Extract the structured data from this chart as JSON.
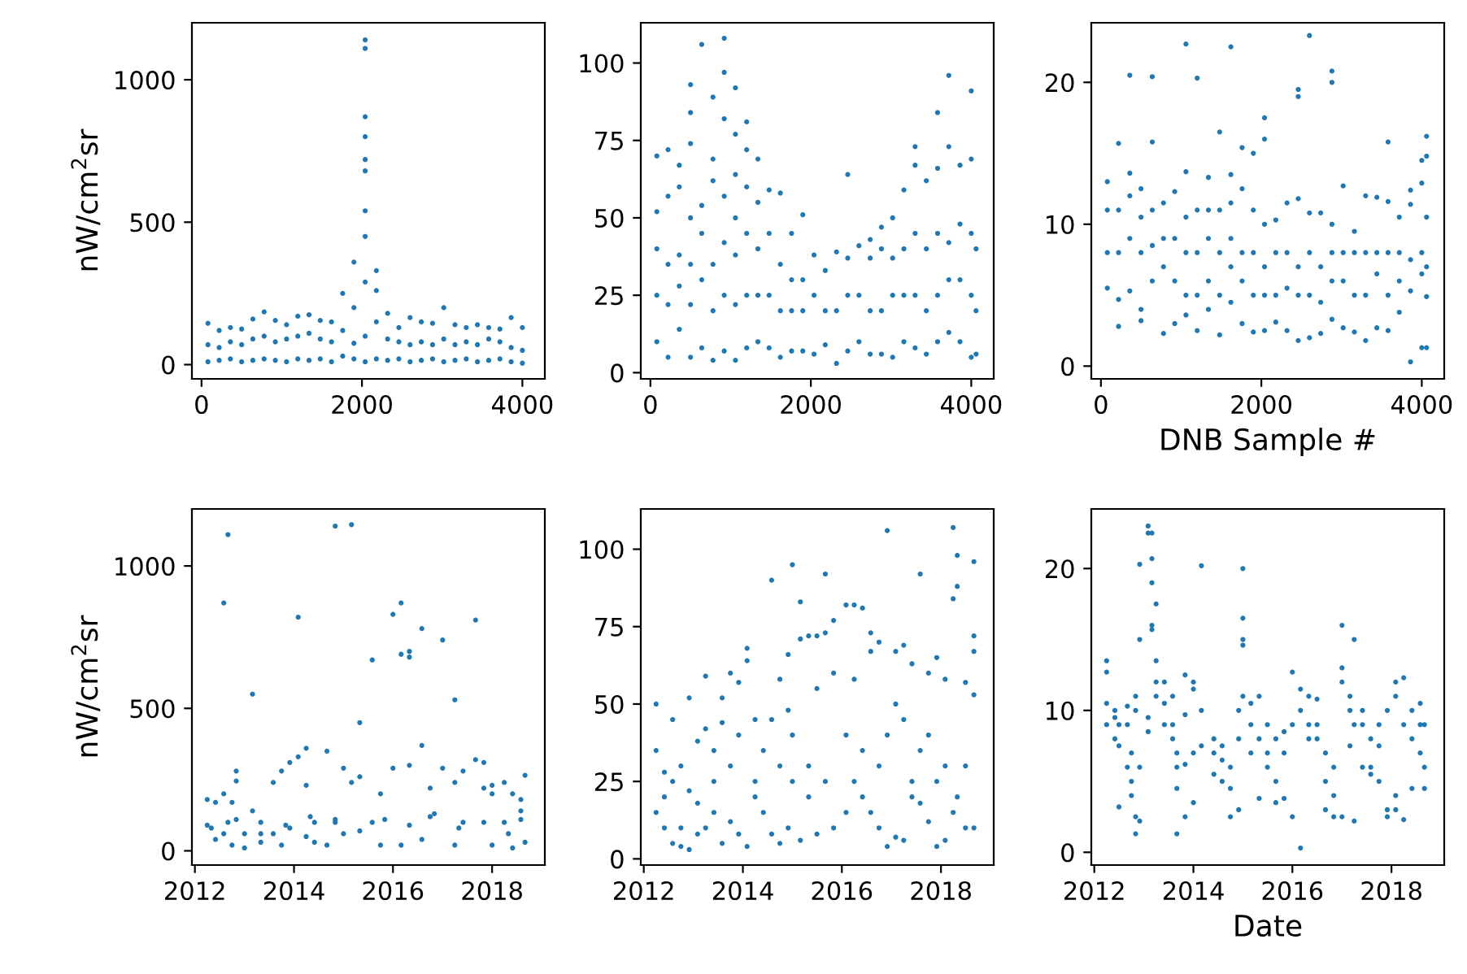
{
  "chart_data": [
    {
      "type": "scatter",
      "ylabel": "nW/cm$^{2}$sr",
      "color": "#1f77b4",
      "marker": "circle",
      "xlim": [
        -120,
        4280
      ],
      "ylim": [
        -50,
        1200
      ],
      "xticks": [
        0,
        2000,
        4000
      ],
      "yticks": [
        0,
        500,
        1000
      ],
      "x": [
        80,
        80,
        80,
        220,
        220,
        220,
        360,
        360,
        360,
        500,
        500,
        500,
        640,
        640,
        640,
        780,
        780,
        780,
        920,
        920,
        920,
        1060,
        1060,
        1060,
        1200,
        1200,
        1200,
        1340,
        1340,
        1340,
        1480,
        1480,
        1480,
        1620,
        1620,
        1620,
        1760,
        1760,
        1760,
        1900,
        1900,
        1900,
        1900,
        2040,
        2040,
        2040,
        2040,
        2040,
        2040,
        2040,
        2040,
        2040,
        2040,
        2040,
        2180,
        2180,
        2180,
        2180,
        2320,
        2320,
        2320,
        2460,
        2460,
        2460,
        2600,
        2600,
        2600,
        2740,
        2740,
        2740,
        2880,
        2880,
        2880,
        3020,
        3020,
        3020,
        3160,
        3160,
        3160,
        3300,
        3300,
        3300,
        3440,
        3440,
        3440,
        3580,
        3580,
        3580,
        3720,
        3720,
        3720,
        3860,
        3860,
        3860,
        4000,
        4000,
        4000
      ],
      "values": [
        10,
        70,
        145,
        15,
        60,
        120,
        20,
        80,
        130,
        10,
        70,
        125,
        15,
        90,
        160,
        20,
        100,
        185,
        15,
        80,
        155,
        10,
        90,
        140,
        20,
        100,
        170,
        15,
        110,
        175,
        20,
        90,
        155,
        10,
        80,
        150,
        30,
        120,
        250,
        20,
        200,
        360,
        75,
        10,
        100,
        290,
        450,
        540,
        680,
        720,
        800,
        870,
        1110,
        1140,
        20,
        150,
        260,
        330,
        15,
        90,
        180,
        20,
        80,
        130,
        10,
        70,
        165,
        15,
        80,
        150,
        20,
        70,
        145,
        10,
        90,
        200,
        15,
        70,
        140,
        20,
        80,
        130,
        10,
        70,
        140,
        15,
        90,
        130,
        20,
        80,
        125,
        10,
        60,
        165,
        5,
        50,
        130
      ]
    },
    {
      "type": "scatter",
      "color": "#1f77b4",
      "marker": "circle",
      "xlim": [
        -120,
        4280
      ],
      "ylim": [
        -2,
        113
      ],
      "xticks": [
        0,
        2000,
        4000
      ],
      "yticks": [
        0,
        25,
        50,
        75,
        100
      ],
      "x": [
        80,
        80,
        80,
        80,
        80,
        220,
        220,
        220,
        220,
        220,
        360,
        360,
        360,
        360,
        360,
        500,
        500,
        500,
        500,
        500,
        500,
        500,
        640,
        640,
        640,
        640,
        640,
        780,
        780,
        780,
        780,
        780,
        780,
        920,
        920,
        920,
        920,
        920,
        920,
        920,
        1060,
        1060,
        1060,
        1060,
        1060,
        1060,
        1060,
        1200,
        1200,
        1200,
        1200,
        1200,
        1200,
        1340,
        1340,
        1340,
        1340,
        1340,
        1480,
        1480,
        1480,
        1480,
        1620,
        1620,
        1620,
        1620,
        1760,
        1760,
        1760,
        1760,
        1900,
        1900,
        1900,
        1900,
        2040,
        2040,
        2040,
        2180,
        2180,
        2180,
        2320,
        2320,
        2320,
        2460,
        2460,
        2460,
        2460,
        2600,
        2600,
        2600,
        2740,
        2740,
        2740,
        2740,
        2880,
        2880,
        2880,
        2880,
        3020,
        3020,
        3020,
        3020,
        3160,
        3160,
        3160,
        3160,
        3300,
        3300,
        3300,
        3300,
        3300,
        3440,
        3440,
        3440,
        3440,
        3580,
        3580,
        3580,
        3580,
        3580,
        3720,
        3720,
        3720,
        3720,
        3720,
        3860,
        3860,
        3860,
        3860,
        4000,
        4000,
        4000,
        4000,
        4000,
        4060,
        4060,
        4060
      ],
      "values": [
        10,
        25,
        40,
        52,
        70,
        5,
        22,
        35,
        57,
        72,
        14,
        28,
        38,
        60,
        67,
        5,
        22,
        35,
        50,
        74,
        84,
        93,
        8,
        30,
        45,
        54,
        106,
        4,
        20,
        35,
        62,
        69,
        89,
        7,
        25,
        42,
        57,
        82,
        97,
        108,
        4,
        22,
        38,
        50,
        64,
        77,
        92,
        8,
        25,
        45,
        60,
        72,
        81,
        10,
        25,
        40,
        55,
        69,
        8,
        25,
        45,
        59,
        5,
        20,
        35,
        58,
        7,
        20,
        30,
        45,
        7,
        20,
        30,
        51,
        6,
        25,
        38,
        9,
        20,
        33,
        3,
        20,
        39,
        7,
        25,
        37,
        64,
        10,
        25,
        41,
        6,
        20,
        37,
        43,
        6,
        20,
        40,
        47,
        5,
        25,
        37,
        50,
        10,
        25,
        40,
        59,
        8,
        25,
        45,
        67,
        73,
        6,
        20,
        40,
        62,
        10,
        25,
        45,
        66,
        84,
        13,
        30,
        42,
        73,
        96,
        10,
        30,
        48,
        67,
        5,
        25,
        45,
        69,
        91,
        6,
        20,
        40
      ]
    },
    {
      "type": "scatter",
      "xlabel": "DNB Sample #",
      "color": "#1f77b4",
      "marker": "circle",
      "xlim": [
        -120,
        4280
      ],
      "ylim": [
        -0.9,
        24.2
      ],
      "xticks": [
        0,
        2000,
        4000
      ],
      "yticks": [
        0,
        10,
        20
      ],
      "x": [
        80,
        80,
        80,
        80,
        220,
        220,
        220,
        220,
        220,
        360,
        360,
        360,
        360,
        360,
        500,
        500,
        500,
        500,
        500,
        640,
        640,
        640,
        640,
        640,
        780,
        780,
        780,
        780,
        920,
        920,
        920,
        920,
        1060,
        1060,
        1060,
        1060,
        1060,
        1060,
        1200,
        1200,
        1200,
        1200,
        1200,
        1340,
        1340,
        1340,
        1340,
        1340,
        1480,
        1480,
        1480,
        1480,
        1480,
        1620,
        1620,
        1620,
        1620,
        1620,
        1620,
        1760,
        1760,
        1760,
        1760,
        1760,
        1900,
        1900,
        1900,
        1900,
        1900,
        2040,
        2040,
        2040,
        2040,
        2040,
        2040,
        2180,
        2180,
        2180,
        2180,
        2320,
        2320,
        2320,
        2320,
        2460,
        2460,
        2460,
        2460,
        2460,
        2460,
        2600,
        2600,
        2600,
        2600,
        2600,
        2740,
        2740,
        2740,
        2740,
        2880,
        2880,
        2880,
        2880,
        2880,
        2880,
        3020,
        3020,
        3020,
        3020,
        3160,
        3160,
        3160,
        3160,
        3300,
        3300,
        3300,
        3300,
        3440,
        3440,
        3440,
        3440,
        3580,
        3580,
        3580,
        3580,
        3580,
        3720,
        3720,
        3720,
        3720,
        3860,
        3860,
        3860,
        3860,
        3860,
        4000,
        4000,
        4000,
        4000,
        4000,
        4060,
        4060,
        4060,
        4060,
        4060,
        4060
      ],
      "values": [
        5.5,
        8,
        11,
        13,
        2.8,
        4.7,
        8,
        11,
        15.7,
        5.3,
        9,
        12,
        13.6,
        20.5,
        3.2,
        4,
        8,
        10.5,
        12.5,
        6,
        8.5,
        11,
        15.8,
        20.4,
        2.3,
        7,
        9,
        11.5,
        3,
        6,
        9,
        12.3,
        3.6,
        5,
        8,
        10.5,
        13.7,
        22.7,
        2.5,
        5,
        8,
        11,
        20.3,
        4,
        6,
        9,
        11,
        13.3,
        2.2,
        5,
        8,
        11,
        16.5,
        4.5,
        7,
        9,
        11.5,
        13.5,
        22.5,
        3,
        6,
        8,
        12.5,
        15.4,
        2.4,
        5,
        8,
        11,
        15,
        2.5,
        5,
        7,
        10,
        16,
        17.5,
        3.1,
        5,
        8,
        10.3,
        2.5,
        5.5,
        8,
        11.5,
        1.8,
        5,
        7,
        11.8,
        19,
        19.5,
        2,
        5,
        8,
        10.8,
        23.3,
        2.3,
        4.5,
        7,
        10.8,
        3.3,
        6,
        8,
        10,
        20,
        20.8,
        2.7,
        6,
        8,
        12.7,
        2.4,
        5,
        8,
        9.5,
        1.8,
        5,
        8,
        12,
        2.7,
        6.5,
        8,
        11.9,
        2.5,
        5,
        8,
        11.6,
        15.8,
        3.8,
        6,
        8,
        10.5,
        0.3,
        5.3,
        7.5,
        11.4,
        12.4,
        1.3,
        6.5,
        8,
        12.9,
        14.5,
        1.3,
        4.9,
        7,
        10.5,
        14.8,
        16.2
      ]
    },
    {
      "type": "scatter",
      "ylabel": "nW/cm$^{2}$sr",
      "color": "#1f77b4",
      "marker": "circle",
      "xlim": [
        "2011-12-10",
        "2019-01-25"
      ],
      "ylim": [
        -50,
        1200
      ],
      "xticks": [
        {
          "value": "2012-01-01",
          "label": "2012"
        },
        {
          "value": "2014-01-01",
          "label": "2014"
        },
        {
          "value": "2016-01-01",
          "label": "2016"
        },
        {
          "value": "2018-01-01",
          "label": "2018"
        }
      ],
      "yticks": [
        0,
        500,
        1000
      ],
      "x": [
        "2012-04",
        "2012-04",
        "2012-06",
        "2012-06",
        "2012-08",
        "2012-08",
        "2012-08",
        "2012-09",
        "2012-09",
        "2012-10",
        "2012-10",
        "2012-11",
        "2012-11",
        "2013-01",
        "2013-01",
        "2013-03",
        "2013-03",
        "2013-05",
        "2013-05",
        "2013-08",
        "2013-08",
        "2013-10",
        "2013-10",
        "2013-12",
        "2013-12",
        "2014-02",
        "2014-02",
        "2014-04",
        "2014-04",
        "2014-04",
        "2014-06",
        "2014-06",
        "2014-09",
        "2014-09",
        "2014-11",
        "2014-11",
        "2015-01",
        "2015-01",
        "2015-03",
        "2015-03",
        "2015-05",
        "2015-05",
        "2015-08",
        "2015-08",
        "2015-10",
        "2015-10",
        "2016-01",
        "2016-01",
        "2016-03",
        "2016-03",
        "2016-03",
        "2016-05",
        "2016-05",
        "2016-05",
        "2016-08",
        "2016-08",
        "2016-08",
        "2016-10",
        "2016-10",
        "2017-01",
        "2017-01",
        "2017-04",
        "2017-04",
        "2017-04",
        "2017-06",
        "2017-06",
        "2017-09",
        "2017-09",
        "2017-11",
        "2017-11",
        "2018-01",
        "2018-01",
        "2018-01",
        "2018-04",
        "2018-04",
        "2018-06",
        "2018-06",
        "2018-08",
        "2018-08",
        "2018-09",
        "2018-09",
        "2012-05",
        "2012-11",
        "2013-05",
        "2013-11",
        "2014-05",
        "2014-11",
        "2015-05",
        "2015-11",
        "2016-05",
        "2016-11",
        "2017-05",
        "2017-11",
        "2018-05",
        "2018-08"
      ],
      "values": [
        90,
        180,
        40,
        170,
        60,
        200,
        870,
        100,
        1110,
        20,
        170,
        280,
        245,
        10,
        60,
        550,
        140,
        30,
        100,
        240,
        60,
        20,
        280,
        310,
        80,
        330,
        820,
        360,
        50,
        230,
        100,
        30,
        350,
        20,
        1140,
        110,
        290,
        60,
        1145,
        240,
        450,
        260,
        670,
        100,
        200,
        20,
        290,
        830,
        690,
        870,
        20,
        680,
        700,
        300,
        370,
        780,
        40,
        220,
        120,
        740,
        290,
        530,
        240,
        20,
        280,
        100,
        810,
        320,
        310,
        220,
        20,
        200,
        230,
        240,
        100,
        200,
        10,
        180,
        140,
        265,
        30,
        80,
        110,
        60,
        90,
        120,
        100,
        70,
        110,
        90,
        130,
        80,
        100,
        60,
        110
      ]
    },
    {
      "type": "scatter",
      "color": "#1f77b4",
      "marker": "circle",
      "xlim": [
        "2011-12-10",
        "2019-01-25"
      ],
      "ylim": [
        -2,
        113
      ],
      "xticks": [
        {
          "value": "2012-01-01",
          "label": "2012"
        },
        {
          "value": "2014-01-01",
          "label": "2014"
        },
        {
          "value": "2016-01-01",
          "label": "2016"
        },
        {
          "value": "2018-01-01",
          "label": "2018"
        }
      ],
      "yticks": [
        0,
        25,
        50,
        75,
        100
      ],
      "x": [
        "2012-04",
        "2012-04",
        "2012-04",
        "2012-06",
        "2012-06",
        "2012-06",
        "2012-08",
        "2012-08",
        "2012-08",
        "2012-10",
        "2012-10",
        "2012-10",
        "2012-12",
        "2012-12",
        "2012-12",
        "2013-02",
        "2013-02",
        "2013-02",
        "2013-04",
        "2013-04",
        "2013-04",
        "2013-06",
        "2013-06",
        "2013-06",
        "2013-08",
        "2013-08",
        "2013-08",
        "2013-10",
        "2013-10",
        "2013-10",
        "2013-12",
        "2013-12",
        "2013-12",
        "2014-02",
        "2014-02",
        "2014-02",
        "2014-04",
        "2014-04",
        "2014-04",
        "2014-06",
        "2014-06",
        "2014-08",
        "2014-08",
        "2014-08",
        "2014-10",
        "2014-10",
        "2014-10",
        "2014-12",
        "2014-12",
        "2014-12",
        "2015-01",
        "2015-01",
        "2015-01",
        "2015-03",
        "2015-03",
        "2015-03",
        "2015-05",
        "2015-05",
        "2015-05",
        "2015-07",
        "2015-07",
        "2015-07",
        "2015-09",
        "2015-09",
        "2015-09",
        "2015-11",
        "2015-11",
        "2015-11",
        "2016-02",
        "2016-02",
        "2016-02",
        "2016-04",
        "2016-04",
        "2016-04",
        "2016-06",
        "2016-06",
        "2016-06",
        "2016-08",
        "2016-08",
        "2016-08",
        "2016-10",
        "2016-10",
        "2016-10",
        "2016-12",
        "2016-12",
        "2016-12",
        "2017-02",
        "2017-02",
        "2017-02",
        "2017-04",
        "2017-04",
        "2017-04",
        "2017-06",
        "2017-06",
        "2017-06",
        "2017-08",
        "2017-08",
        "2017-08",
        "2017-10",
        "2017-10",
        "2017-10",
        "2017-12",
        "2017-12",
        "2017-12",
        "2018-02",
        "2018-02",
        "2018-02",
        "2018-04",
        "2018-04",
        "2018-04",
        "2018-05",
        "2018-05",
        "2018-05",
        "2018-07",
        "2018-07",
        "2018-07",
        "2018-09",
        "2018-09",
        "2018-09",
        "2018-09",
        "2018-09"
      ],
      "values": [
        50,
        15,
        35,
        20,
        28,
        10,
        45,
        5,
        25,
        30,
        10,
        4,
        52,
        22,
        3,
        38,
        18,
        8,
        59,
        42,
        10,
        25,
        35,
        15,
        52,
        44,
        5,
        60,
        30,
        12,
        57,
        8,
        40,
        64,
        68,
        4,
        45,
        25,
        20,
        35,
        15,
        90,
        45,
        8,
        58,
        30,
        5,
        48,
        10,
        66,
        95,
        40,
        25,
        83,
        71,
        6,
        72,
        30,
        20,
        72,
        55,
        8,
        92,
        73,
        25,
        77,
        60,
        10,
        82,
        40,
        15,
        82,
        58,
        25,
        81,
        35,
        20,
        67,
        73,
        15,
        70,
        30,
        10,
        106,
        40,
        4,
        67,
        50,
        7,
        69,
        45,
        6,
        63,
        25,
        20,
        92,
        35,
        18,
        60,
        40,
        12,
        65,
        25,
        4,
        58,
        30,
        6,
        107,
        84,
        15,
        98,
        88,
        20,
        57,
        30,
        10,
        96,
        67,
        72,
        53,
        10
      ]
    },
    {
      "type": "scatter",
      "xlabel": "Date",
      "color": "#1f77b4",
      "marker": "circle",
      "xlim": [
        "2011-12-10",
        "2019-01-25"
      ],
      "ylim": [
        -0.9,
        24.2
      ],
      "xticks": [
        {
          "value": "2012-01-01",
          "label": "2012"
        },
        {
          "value": "2014-01-01",
          "label": "2014"
        },
        {
          "value": "2016-01-01",
          "label": "2016"
        },
        {
          "value": "2018-01-01",
          "label": "2018"
        }
      ],
      "yticks": [
        0,
        10,
        20
      ],
      "x": [
        "2012-04",
        "2012-04",
        "2012-04",
        "2012-04",
        "2012-06",
        "2012-06",
        "2012-06",
        "2012-07",
        "2012-07",
        "2012-07",
        "2012-09",
        "2012-09",
        "2012-09",
        "2012-10",
        "2012-10",
        "2012-10",
        "2012-11",
        "2012-11",
        "2012-11",
        "2012-11",
        "2012-12",
        "2012-12",
        "2012-12",
        "2012-12",
        "2013-02",
        "2013-02",
        "2013-02",
        "2013-02",
        "2013-03",
        "2013-03",
        "2013-03",
        "2013-03",
        "2013-03",
        "2013-04",
        "2013-04",
        "2013-04",
        "2013-04",
        "2013-06",
        "2013-06",
        "2013-06",
        "2013-08",
        "2013-08",
        "2013-08",
        "2013-09",
        "2013-09",
        "2013-09",
        "2013-09",
        "2013-11",
        "2013-11",
        "2013-11",
        "2013-11",
        "2014-01",
        "2014-01",
        "2014-01",
        "2014-01",
        "2014-03",
        "2014-03",
        "2014-03",
        "2014-06",
        "2014-06",
        "2014-06",
        "2014-08",
        "2014-08",
        "2014-08",
        "2014-10",
        "2014-10",
        "2014-10",
        "2014-12",
        "2014-12",
        "2014-12",
        "2015-01",
        "2015-01",
        "2015-01",
        "2015-01",
        "2015-01",
        "2015-03",
        "2015-03",
        "2015-03",
        "2015-05",
        "2015-05",
        "2015-05",
        "2015-07",
        "2015-07",
        "2015-07",
        "2015-09",
        "2015-09",
        "2015-09",
        "2015-11",
        "2015-11",
        "2015-11",
        "2016-01",
        "2016-01",
        "2016-01",
        "2016-03",
        "2016-03",
        "2016-03",
        "2016-05",
        "2016-05",
        "2016-05",
        "2016-07",
        "2016-07",
        "2016-07",
        "2016-09",
        "2016-09",
        "2016-09",
        "2016-11",
        "2016-11",
        "2016-11",
        "2017-01",
        "2017-01",
        "2017-01",
        "2017-01",
        "2017-03",
        "2017-03",
        "2017-03",
        "2017-04",
        "2017-04",
        "2017-04",
        "2017-06",
        "2017-06",
        "2017-06",
        "2017-08",
        "2017-08",
        "2017-08",
        "2017-10",
        "2017-10",
        "2017-10",
        "2017-12",
        "2017-12",
        "2017-12",
        "2018-02",
        "2018-02",
        "2018-02",
        "2018-02",
        "2018-04",
        "2018-04",
        "2018-04",
        "2018-06",
        "2018-06",
        "2018-06",
        "2018-08",
        "2018-08",
        "2018-08",
        "2018-09",
        "2018-09",
        "2018-09"
      ],
      "values": [
        12.7,
        13.5,
        9,
        10.5,
        8,
        10,
        9.5,
        3.2,
        7.5,
        9,
        6,
        9,
        10.3,
        4,
        5,
        7,
        1.3,
        2.5,
        10,
        11,
        20.3,
        15,
        2.2,
        6,
        23,
        22.5,
        8.5,
        9.5,
        22.5,
        19,
        16,
        15.7,
        20.7,
        17.5,
        13.5,
        12,
        11,
        10.5,
        12,
        9,
        8,
        9,
        11,
        1.3,
        4.5,
        6,
        7,
        2.5,
        9.7,
        6.2,
        12.5,
        3.5,
        12,
        11.5,
        7,
        20.2,
        10,
        7.5,
        7,
        5.5,
        8,
        6.5,
        5,
        7.5,
        2.5,
        4.5,
        6,
        3,
        10,
        8,
        20,
        16.5,
        15,
        14.6,
        11,
        10.5,
        7,
        9,
        3.8,
        11,
        8,
        6,
        9,
        7,
        3.5,
        5,
        8,
        3.8,
        7,
        8.5,
        2.5,
        12.7,
        9,
        0.3,
        11.5,
        10,
        8,
        11,
        9,
        9,
        10.8,
        8,
        5,
        3,
        7,
        2.5,
        4,
        6,
        16,
        13,
        12,
        2.5,
        10,
        11,
        7.5,
        15,
        2.2,
        9,
        9,
        10,
        6,
        8,
        6,
        5.5,
        7.5,
        9,
        5,
        2.5,
        10,
        3,
        12,
        11,
        4,
        3,
        12.3,
        9,
        2.3,
        10,
        8,
        4.5,
        10.5,
        9,
        7,
        9,
        6,
        4.5
      ]
    }
  ]
}
